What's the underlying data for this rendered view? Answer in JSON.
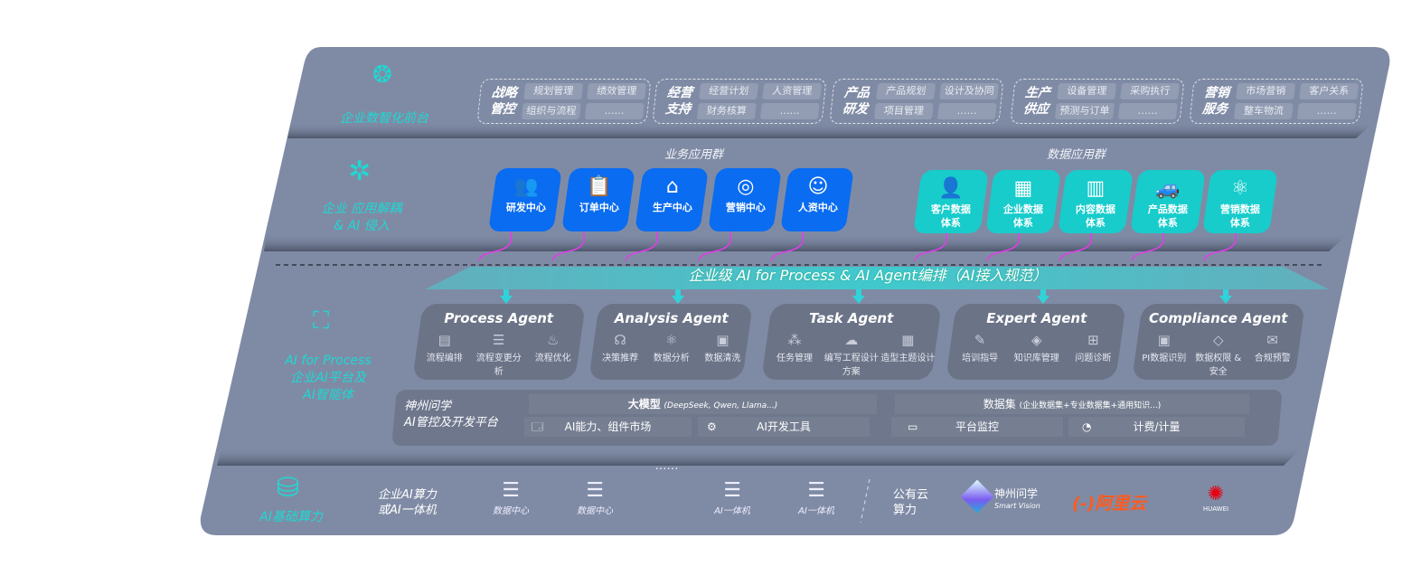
{
  "colors": {
    "panel": "#7f8ba5",
    "accent_cyan": "#1fd8d2",
    "business_blue": "#0a6cf0",
    "data_teal": "#17cccb",
    "agent_card": "#6b7387",
    "arrow_magenta": "#e03ee8",
    "aliyun_orange": "#ff5a1f",
    "huawei_red": "#e60012"
  },
  "layer1": {
    "label": "企业数智化前台",
    "icon": "brain-icon",
    "groups": [
      {
        "title": "战略管控",
        "items": [
          "规划管理",
          "绩效管理",
          "组织与流程",
          "……"
        ]
      },
      {
        "title": "经营支持",
        "items": [
          "经营计划",
          "人资管理",
          "财务核算",
          "……"
        ]
      },
      {
        "title": "产品研发",
        "items": [
          "产品规划",
          "设计及协同",
          "项目管理",
          "……"
        ]
      },
      {
        "title": "生产供应",
        "items": [
          "设备管理",
          "采购执行",
          "预测与订单",
          "……"
        ]
      },
      {
        "title": "营销服务",
        "items": [
          "市场营销",
          "客户关系",
          "整车物流",
          "……"
        ]
      }
    ]
  },
  "layer2": {
    "label_line1": "企业 应用解耦",
    "label_line2": "& AI 侵入",
    "icon": "molecule-icon",
    "business_title": "业务应用群",
    "data_title": "数据应用群",
    "business_apps": [
      {
        "label": "研发中心",
        "icon": "users-icon"
      },
      {
        "label": "订单中心",
        "icon": "clipboard-icon"
      },
      {
        "label": "生产中心",
        "icon": "factory-icon"
      },
      {
        "label": "营销中心",
        "icon": "target-icon"
      },
      {
        "label": "人资中心",
        "icon": "person-icon"
      }
    ],
    "data_apps": [
      {
        "l1": "客户数据",
        "l2": "体系",
        "icon": "user-icon"
      },
      {
        "l1": "企业数据",
        "l2": "体系",
        "icon": "building-icon"
      },
      {
        "l1": "内容数据",
        "l2": "体系",
        "icon": "books-icon"
      },
      {
        "l1": "产品数据",
        "l2": "体系",
        "icon": "car-icon"
      },
      {
        "l1": "营销数据",
        "l2": "体系",
        "icon": "atom-icon"
      }
    ]
  },
  "banner": "企业级 AI for Process & AI Agent编排（AI接入规范）",
  "layer3": {
    "label_en": "AI for Process",
    "label_l2": "企业AI平台及",
    "label_l3": "AI智能体",
    "icon": "face-scan-icon",
    "agents": [
      {
        "name": "Process Agent",
        "items": [
          "流程编排",
          "流程变更分析",
          "流程优化"
        ]
      },
      {
        "name": "Analysis Agent",
        "items": [
          "决策推荐",
          "数据分析",
          "数据清洗"
        ]
      },
      {
        "name": "Task Agent",
        "items": [
          "任务管理",
          "编写工程设计方案",
          "造型主题设计"
        ]
      },
      {
        "name": "Expert Agent",
        "items": [
          "培训指导",
          "知识库管理",
          "问题诊断"
        ]
      },
      {
        "name": "Compliance Agent",
        "items": [
          "PI数据识别",
          "数据权限 & 安全",
          "合规预警"
        ]
      }
    ],
    "platform": {
      "title_l1": "神州问学",
      "title_l2": "AI管控及开发平台",
      "model": "大模型",
      "model_note": "(DeepSeek, Qwen, Llama...)",
      "dataset": "数据集",
      "dataset_note": "(企业数据集+专业数据集+通用知识...)",
      "market": "AI能力、组件市场",
      "devtools": "AI开发工具",
      "monitor": "平台监控",
      "billing": "计费/计量"
    }
  },
  "layer4": {
    "label": "AI基础算力",
    "icon": "database-icon",
    "enterprise_l1": "企业AI算力",
    "enterprise_l2": "或AI一体机",
    "servers": [
      "数据中心",
      "数据中心",
      "……",
      "AI一体机",
      "AI一体机"
    ],
    "public_l1": "公有云",
    "public_l2": "算力",
    "vendors": {
      "smart_vision_cn": "神州问学",
      "smart_vision_en": "Smart Vision",
      "aliyun_mark": "(-)",
      "aliyun": "阿里云",
      "huawei": "HUAWEI"
    }
  }
}
